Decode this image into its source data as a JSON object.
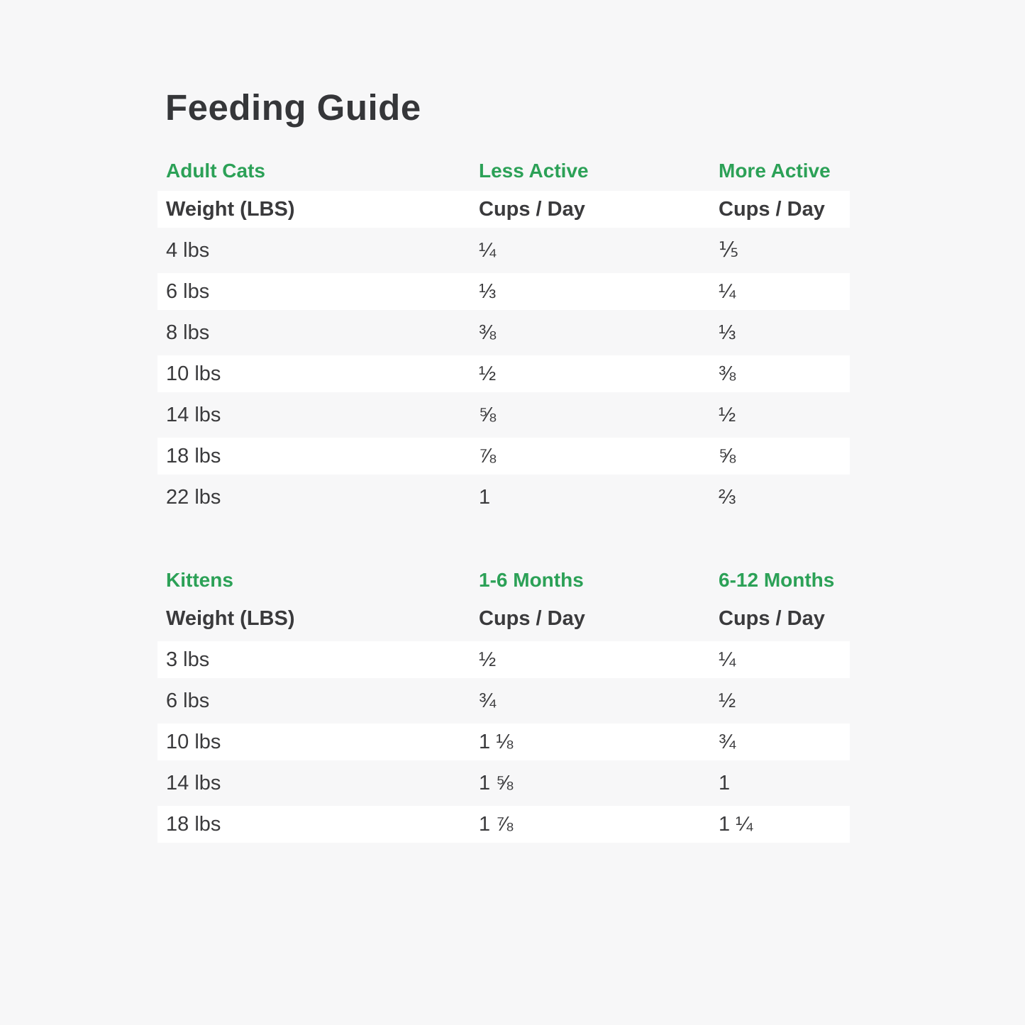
{
  "title": "Feeding Guide",
  "colors": {
    "accent_green": "#2CA157",
    "text_dark": "#3A3A3C",
    "page_background": "#F7F7F8",
    "row_stripe": "#FFFFFF"
  },
  "adult_table": {
    "section_label": "Adult Cats",
    "col2_label": "Less Active",
    "col3_label": "More Active",
    "header": {
      "col1": "Weight (LBS)",
      "col2": "Cups / Day",
      "col3": "Cups / Day"
    },
    "rows": [
      {
        "weight": "4 lbs",
        "less_active": "¼",
        "more_active": "⅕"
      },
      {
        "weight": "6 lbs",
        "less_active": "⅓",
        "more_active": "¼"
      },
      {
        "weight": "8 lbs",
        "less_active": "⅜",
        "more_active": "⅓"
      },
      {
        "weight": "10 lbs",
        "less_active": "½",
        "more_active": "⅜"
      },
      {
        "weight": "14 lbs",
        "less_active": "⅝",
        "more_active": "½"
      },
      {
        "weight": "18 lbs",
        "less_active": "⅞",
        "more_active": "⅝"
      },
      {
        "weight": "22 lbs",
        "less_active": "1",
        "more_active": "⅔"
      }
    ]
  },
  "kitten_table": {
    "section_label": "Kittens",
    "col2_label": "1-6 Months",
    "col3_label": "6-12 Months",
    "header": {
      "col1": "Weight (LBS)",
      "col2": "Cups / Day",
      "col3": "Cups / Day"
    },
    "rows": [
      {
        "weight": "3 lbs",
        "months_1_6": "½",
        "months_6_12": "¼"
      },
      {
        "weight": "6 lbs",
        "months_1_6": "¾",
        "months_6_12": "½"
      },
      {
        "weight": "10 lbs",
        "months_1_6": "1 ⅛",
        "months_6_12": "¾"
      },
      {
        "weight": "14 lbs",
        "months_1_6": "1 ⅝",
        "months_6_12": "1"
      },
      {
        "weight": "18 lbs",
        "months_1_6": "1 ⅞",
        "months_6_12": "1 ¼"
      }
    ]
  }
}
